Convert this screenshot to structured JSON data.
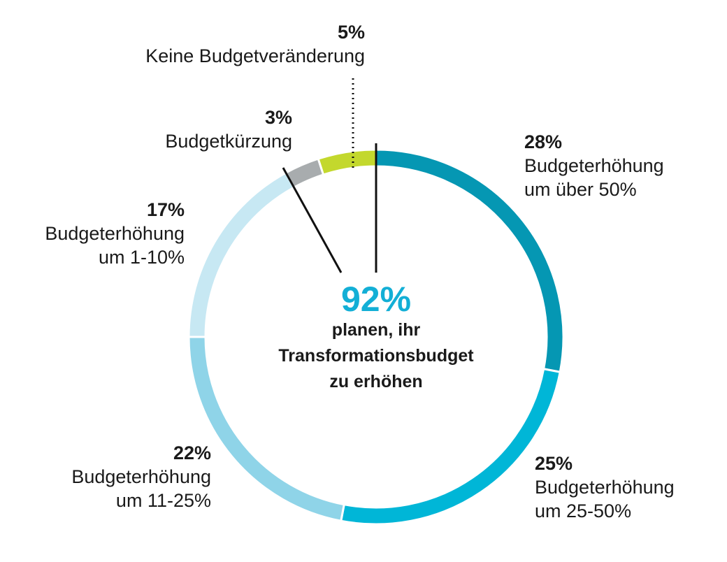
{
  "chart_data": {
    "type": "pie",
    "variant": "donut",
    "slices": [
      {
        "percent": "28%",
        "value": 28,
        "label_lines": [
          "Budgeterhöhung",
          "um über 50%"
        ],
        "color": "#0597b3"
      },
      {
        "percent": "25%",
        "value": 25,
        "label_lines": [
          "Budgeterhöhung",
          "um 25-50%"
        ],
        "color": "#00b6d7"
      },
      {
        "percent": "22%",
        "value": 22,
        "label_lines": [
          "Budgeterhöhung",
          "um 11-25%"
        ],
        "color": "#8fd4e8"
      },
      {
        "percent": "17%",
        "value": 17,
        "label_lines": [
          "Budgeterhöhung",
          "um 1-10%"
        ],
        "color": "#c7e8f3"
      },
      {
        "percent": "3%",
        "value": 3,
        "label_lines": [
          "Budgetkürzung"
        ],
        "color": "#a8acae"
      },
      {
        "percent": "5%",
        "value": 5,
        "label_lines": [
          "Keine Budgetveränderung"
        ],
        "color": "#c3d82d"
      }
    ],
    "center": {
      "value": "92%",
      "value_color": "#13afd6",
      "lines": [
        "planen, ihr",
        "Transformationsbudget",
        "zu erhöhen"
      ]
    }
  }
}
